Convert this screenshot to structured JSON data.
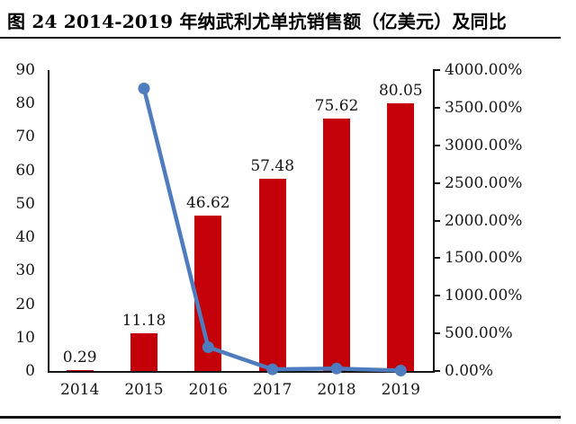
{
  "page": {
    "title": "图 24 2014-2019 年纳武利尤单抗销售额（亿美元）及同比"
  },
  "colors": {
    "bar": "#c40008",
    "line": "#4e7cbe",
    "axis": "#151515",
    "text": "#151515",
    "divider": "#111111",
    "background": "#ffffff"
  },
  "chart_data": {
    "type": "bar",
    "subtype": "bar-line-combo",
    "title": "图 24 2014-2019 年纳武利尤单抗销售额（亿美元）及同比",
    "xlabel": "",
    "ylabel": "",
    "categories": [
      "2014",
      "2015",
      "2016",
      "2017",
      "2018",
      "2019"
    ],
    "series": [
      {
        "name": "sales-bars",
        "type": "bar",
        "axis": "left",
        "values": [
          0.29,
          11.18,
          46.62,
          57.48,
          75.62,
          80.05
        ],
        "data_labels": [
          "0.29",
          "11.18",
          "46.62",
          "57.48",
          "75.62",
          "80.05"
        ]
      },
      {
        "name": "yoy-growth-line",
        "type": "line",
        "axis": "right",
        "values": [
          null,
          3755,
          317,
          23,
          32,
          6
        ]
      }
    ],
    "left_axis": {
      "min": 0,
      "max": 90,
      "step": 10,
      "tick_labels": [
        "0",
        "10",
        "20",
        "30",
        "40",
        "50",
        "60",
        "70",
        "80",
        "90"
      ]
    },
    "right_axis": {
      "min": 0,
      "max": 4000,
      "step": 500,
      "tick_labels": [
        "0.00%",
        "500.00%",
        "1000.00%",
        "1500.00%",
        "2000.00%",
        "2500.00%",
        "3000.00%",
        "3500.00%",
        "4000.00%"
      ]
    },
    "grid": false,
    "legend": "none"
  }
}
